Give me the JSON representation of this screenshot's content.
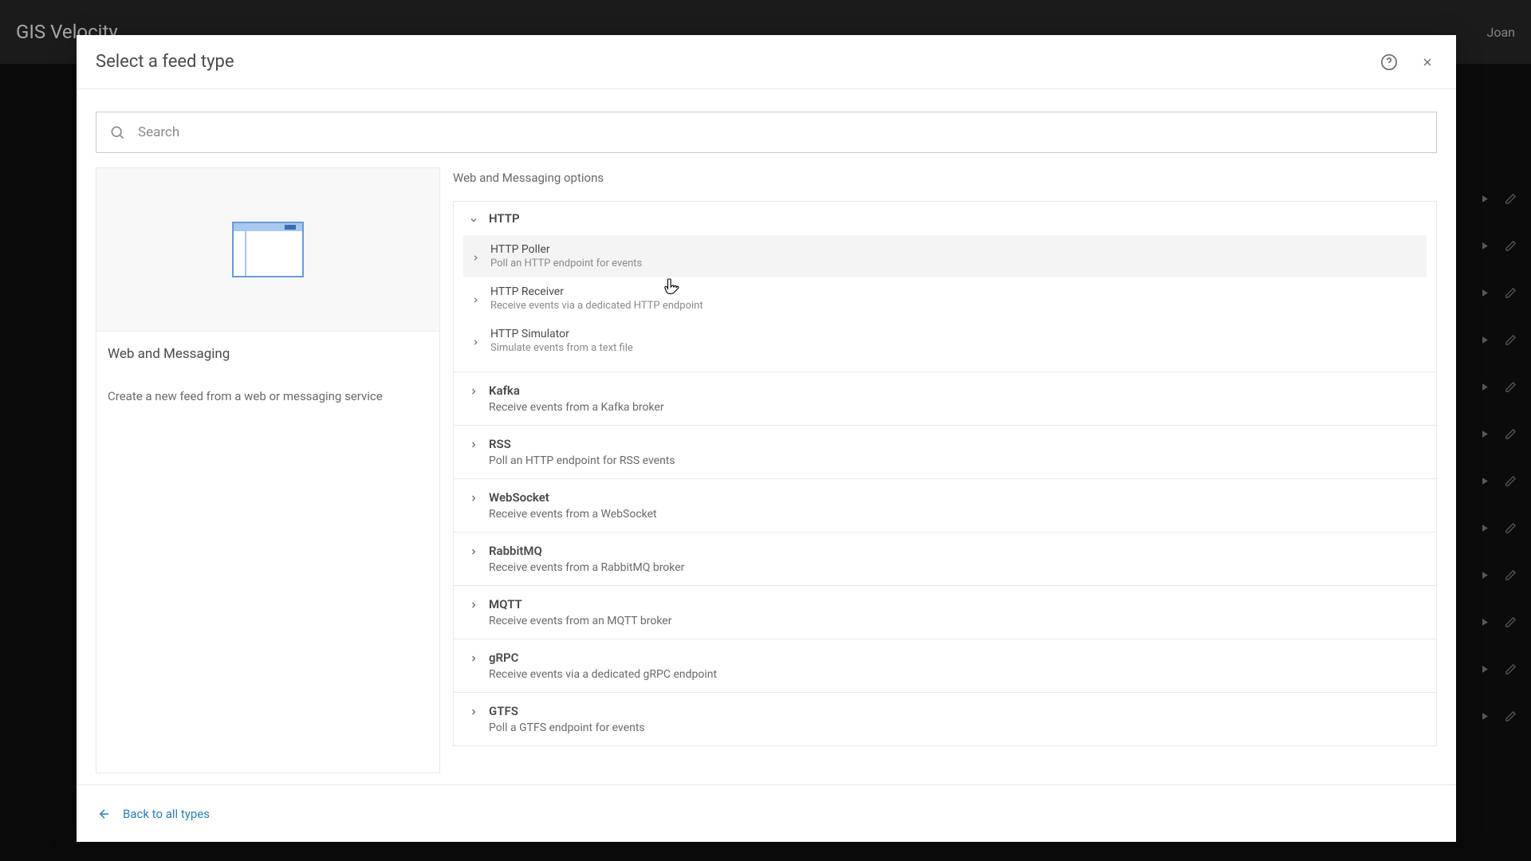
{
  "background": {
    "app_name": "GIS Velocity",
    "user_label": "Joan",
    "row_count": 12
  },
  "modal": {
    "title": "Select a feed type",
    "search_placeholder": "Search",
    "back_link": "Back to all types",
    "category": {
      "name": "Web and Messaging",
      "description": "Create a new feed from a web or messaging service"
    },
    "section_label": "Web and Messaging options",
    "http_group": {
      "label": "HTTP",
      "expanded": true,
      "items": [
        {
          "title": "HTTP Poller",
          "desc": "Poll an HTTP endpoint for events",
          "active": true
        },
        {
          "title": "HTTP Receiver",
          "desc": "Receive events via a dedicated HTTP endpoint",
          "active": false
        },
        {
          "title": "HTTP Simulator",
          "desc": "Simulate events from a text file",
          "active": false
        }
      ]
    },
    "groups": [
      {
        "title": "Kafka",
        "desc": "Receive events from a Kafka broker"
      },
      {
        "title": "RSS",
        "desc": "Poll an HTTP endpoint for RSS events"
      },
      {
        "title": "WebSocket",
        "desc": "Receive events from a WebSocket"
      },
      {
        "title": "RabbitMQ",
        "desc": "Receive events from a RabbitMQ broker"
      },
      {
        "title": "MQTT",
        "desc": "Receive events from an MQTT broker"
      },
      {
        "title": "gRPC",
        "desc": "Receive events via a dedicated gRPC endpoint"
      },
      {
        "title": "GTFS",
        "desc": "Poll a GTFS endpoint for events"
      }
    ]
  },
  "colors": {
    "modal_bg": "#ffffff",
    "border": "#e9e9e9",
    "text": "#4a4a4a",
    "text_light": "#6a6a6a",
    "text_muted": "#8a8a8a",
    "link": "#2b7fb8",
    "hover_bg": "#f4f4f4"
  }
}
